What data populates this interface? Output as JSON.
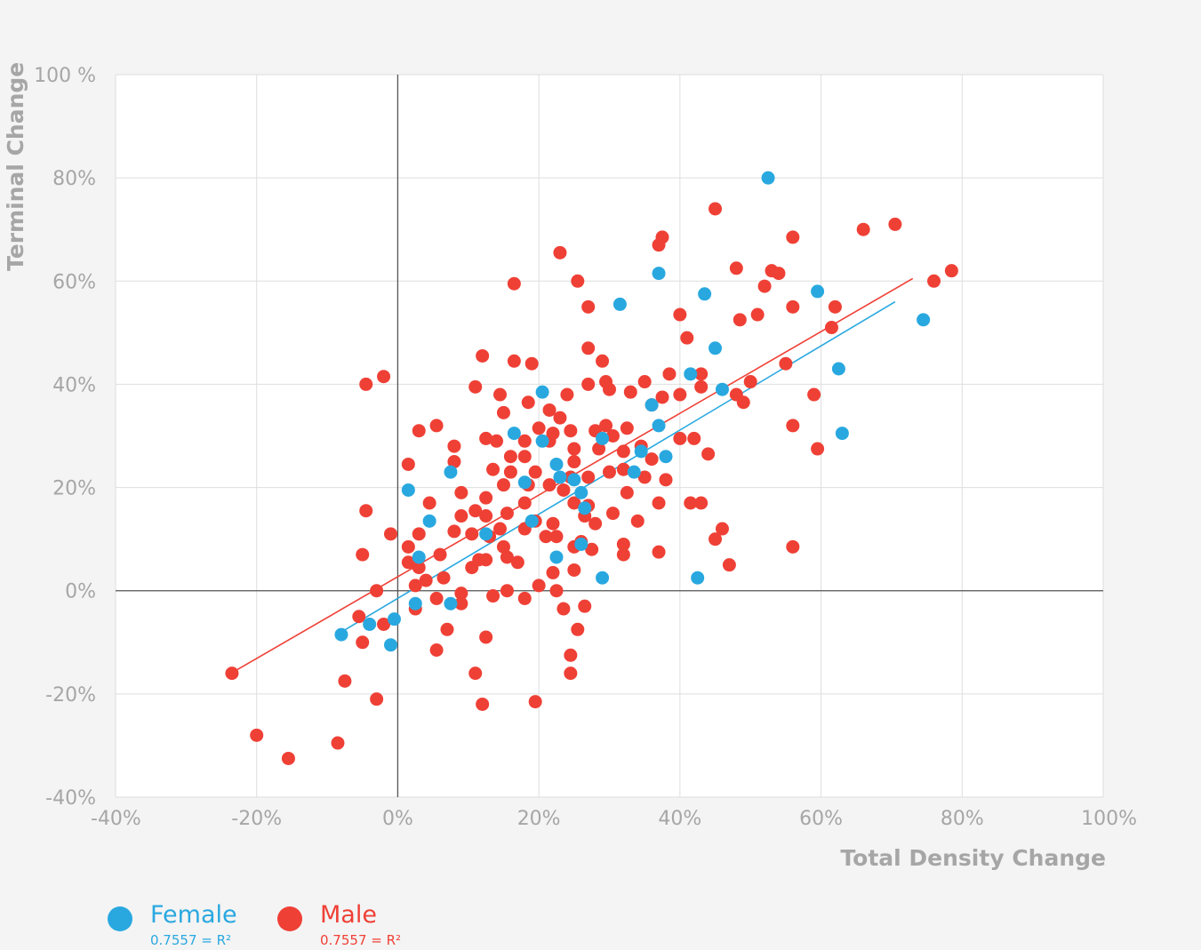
{
  "chart_data": {
    "type": "scatter",
    "title": "",
    "xlabel": "Total Density Change",
    "ylabel": "Terminal Change",
    "xlim": [
      -40,
      100
    ],
    "ylim": [
      -40,
      100
    ],
    "x_ticks": [
      {
        "value": -40,
        "label": "-40%"
      },
      {
        "value": -20,
        "label": "-20%"
      },
      {
        "value": 0,
        "label": "0%"
      },
      {
        "value": 20,
        "label": "20%"
      },
      {
        "value": 40,
        "label": "40%"
      },
      {
        "value": 60,
        "label": "60%"
      },
      {
        "value": 80,
        "label": "80%"
      },
      {
        "value": 100,
        "label": "100%"
      }
    ],
    "y_ticks": [
      {
        "value": 100,
        "label": "100 %"
      },
      {
        "value": 80,
        "label": "80%"
      },
      {
        "value": 60,
        "label": "60%"
      },
      {
        "value": 40,
        "label": "40%"
      },
      {
        "value": 20,
        "label": "20%"
      },
      {
        "value": 0,
        "label": "0%"
      },
      {
        "value": -20,
        "label": "-20%"
      },
      {
        "value": -40,
        "label": "-40%"
      }
    ],
    "grid": true,
    "legend_position": "bottom-left",
    "series": [
      {
        "name": "Female",
        "color": "#29a8e0",
        "r2_label": "0.7557 = R²",
        "trendline": {
          "x": [
            -8,
            70.5
          ],
          "y": [
            -8,
            56
          ]
        },
        "points": [
          [
            52.5,
            80
          ],
          [
            59.5,
            58
          ],
          [
            74.5,
            52.5
          ],
          [
            37,
            61.5
          ],
          [
            43.5,
            57.5
          ],
          [
            31.5,
            55.5
          ],
          [
            45,
            47
          ],
          [
            62.5,
            43
          ],
          [
            41.5,
            42
          ],
          [
            46,
            39
          ],
          [
            20.5,
            38.5
          ],
          [
            37,
            32
          ],
          [
            63,
            30.5
          ],
          [
            16.5,
            30.5
          ],
          [
            36,
            36
          ],
          [
            29,
            29.5
          ],
          [
            20.5,
            29
          ],
          [
            34.5,
            27
          ],
          [
            38,
            26
          ],
          [
            33.5,
            23
          ],
          [
            22.5,
            24.5
          ],
          [
            7.5,
            23
          ],
          [
            1.5,
            19.5
          ],
          [
            23,
            22
          ],
          [
            18,
            21
          ],
          [
            25,
            21.5
          ],
          [
            26,
            19
          ],
          [
            26.5,
            16
          ],
          [
            4.5,
            13.5
          ],
          [
            19,
            13.5
          ],
          [
            12.5,
            11
          ],
          [
            26,
            9
          ],
          [
            3,
            6.5
          ],
          [
            22.5,
            6.5
          ],
          [
            29,
            2.5
          ],
          [
            42.5,
            2.5
          ],
          [
            2.5,
            -2.5
          ],
          [
            7.5,
            -2.5
          ],
          [
            -4,
            -6.5
          ],
          [
            -0.5,
            -5.5
          ],
          [
            -8,
            -8.5
          ],
          [
            -1,
            -10.5
          ]
        ]
      },
      {
        "name": "Male",
        "color": "#ef4036",
        "r2_label": "0.7557 = R²",
        "trendline": {
          "x": [
            -23,
            73
          ],
          "y": [
            -15.5,
            60.5
          ]
        },
        "points": [
          [
            45,
            74
          ],
          [
            70.5,
            71
          ],
          [
            66,
            70
          ],
          [
            56,
            68.5
          ],
          [
            37.5,
            68.5
          ],
          [
            37,
            67
          ],
          [
            23,
            65.5
          ],
          [
            48,
            62.5
          ],
          [
            53,
            62
          ],
          [
            54,
            61.5
          ],
          [
            78.5,
            62
          ],
          [
            76,
            60
          ],
          [
            16.5,
            59.5
          ],
          [
            25.5,
            60
          ],
          [
            52,
            59
          ],
          [
            27,
            55
          ],
          [
            62,
            55
          ],
          [
            56,
            55
          ],
          [
            40,
            53.5
          ],
          [
            51,
            53.5
          ],
          [
            48.5,
            52.5
          ],
          [
            61.5,
            51
          ],
          [
            41,
            49
          ],
          [
            27,
            47
          ],
          [
            12,
            45.5
          ],
          [
            16.5,
            44.5
          ],
          [
            29,
            44.5
          ],
          [
            19,
            44
          ],
          [
            55,
            44
          ],
          [
            -4.5,
            40
          ],
          [
            -2,
            41.5
          ],
          [
            38.5,
            42
          ],
          [
            43,
            42
          ],
          [
            29.5,
            40.5
          ],
          [
            27,
            40
          ],
          [
            35,
            40.5
          ],
          [
            50,
            40.5
          ],
          [
            11,
            39.5
          ],
          [
            30,
            39
          ],
          [
            33,
            38.5
          ],
          [
            43,
            39.5
          ],
          [
            48,
            38
          ],
          [
            14.5,
            38
          ],
          [
            24,
            38
          ],
          [
            37.5,
            37.5
          ],
          [
            40,
            38
          ],
          [
            59,
            38
          ],
          [
            49,
            36.5
          ],
          [
            18.5,
            36.5
          ],
          [
            36,
            36
          ],
          [
            21.5,
            35
          ],
          [
            15,
            34.5
          ],
          [
            23,
            33.5
          ],
          [
            5.5,
            32
          ],
          [
            29.5,
            32
          ],
          [
            32.5,
            31.5
          ],
          [
            3,
            31
          ],
          [
            20,
            31.5
          ],
          [
            24.5,
            31
          ],
          [
            28,
            31
          ],
          [
            22,
            30.5
          ],
          [
            30.5,
            30
          ],
          [
            12.5,
            29.5
          ],
          [
            14,
            29
          ],
          [
            18,
            29
          ],
          [
            21.5,
            29
          ],
          [
            40,
            29.5
          ],
          [
            42,
            29.5
          ],
          [
            56,
            32
          ],
          [
            59.5,
            27.5
          ],
          [
            8,
            28
          ],
          [
            34.5,
            28
          ],
          [
            25,
            27.5
          ],
          [
            28.5,
            27.5
          ],
          [
            32,
            27
          ],
          [
            16,
            26
          ],
          [
            18,
            26
          ],
          [
            36,
            25.5
          ],
          [
            44,
            26.5
          ],
          [
            8,
            25
          ],
          [
            25,
            25
          ],
          [
            1.5,
            24.5
          ],
          [
            13.5,
            23.5
          ],
          [
            16,
            23
          ],
          [
            19.5,
            23
          ],
          [
            30,
            23
          ],
          [
            32,
            23.5
          ],
          [
            24.5,
            22
          ],
          [
            27,
            22
          ],
          [
            35,
            22
          ],
          [
            38,
            21.5
          ],
          [
            15,
            20.5
          ],
          [
            18.5,
            20.5
          ],
          [
            21.5,
            20.5
          ],
          [
            9,
            19
          ],
          [
            23.5,
            19.5
          ],
          [
            32.5,
            19
          ],
          [
            12.5,
            18
          ],
          [
            4.5,
            17
          ],
          [
            18,
            17
          ],
          [
            25,
            17
          ],
          [
            27,
            16.5
          ],
          [
            37,
            17
          ],
          [
            41.5,
            17
          ],
          [
            43,
            17
          ],
          [
            -4.5,
            15.5
          ],
          [
            11,
            15.5
          ],
          [
            15.5,
            15
          ],
          [
            30.5,
            15
          ],
          [
            9,
            14.5
          ],
          [
            12.5,
            14.5
          ],
          [
            26.5,
            14.5
          ],
          [
            19.5,
            13.5
          ],
          [
            22,
            13
          ],
          [
            28,
            13
          ],
          [
            34,
            13.5
          ],
          [
            14.5,
            12
          ],
          [
            18,
            12
          ],
          [
            46,
            12
          ],
          [
            -1,
            11
          ],
          [
            3,
            11
          ],
          [
            8,
            11.5
          ],
          [
            10.5,
            11
          ],
          [
            13,
            10.5
          ],
          [
            21,
            10.5
          ],
          [
            22.5,
            10.5
          ],
          [
            45,
            10
          ],
          [
            1.5,
            8.5
          ],
          [
            15,
            8.5
          ],
          [
            25,
            8.5
          ],
          [
            26,
            9.5
          ],
          [
            27.5,
            8
          ],
          [
            32,
            9
          ],
          [
            56,
            8.5
          ],
          [
            -5,
            7
          ],
          [
            6,
            7
          ],
          [
            11.5,
            6
          ],
          [
            12.5,
            6
          ],
          [
            15.5,
            6.5
          ],
          [
            17,
            5.5
          ],
          [
            32,
            7
          ],
          [
            37,
            7.5
          ],
          [
            1.5,
            5.5
          ],
          [
            3,
            4.5
          ],
          [
            10.5,
            4.5
          ],
          [
            22,
            3.5
          ],
          [
            25,
            4
          ],
          [
            47,
            5
          ],
          [
            4,
            2
          ],
          [
            6.5,
            2.5
          ],
          [
            2.5,
            1
          ],
          [
            20,
            1
          ],
          [
            -3,
            0
          ],
          [
            9,
            -0.5
          ],
          [
            15.5,
            0
          ],
          [
            22.5,
            0
          ],
          [
            13.5,
            -1
          ],
          [
            5.5,
            -1.5
          ],
          [
            18,
            -1.5
          ],
          [
            9,
            -2.5
          ],
          [
            26.5,
            -3
          ],
          [
            2.5,
            -3.5
          ],
          [
            23.5,
            -3.5
          ],
          [
            -5.5,
            -5
          ],
          [
            -2,
            -6.5
          ],
          [
            7,
            -7.5
          ],
          [
            25.5,
            -7.5
          ],
          [
            -5,
            -10
          ],
          [
            12.5,
            -9
          ],
          [
            5.5,
            -11.5
          ],
          [
            24.5,
            -12.5
          ],
          [
            -23.5,
            -16
          ],
          [
            11,
            -16
          ],
          [
            24.5,
            -16
          ],
          [
            -7.5,
            -17.5
          ],
          [
            -3,
            -21
          ],
          [
            12,
            -22
          ],
          [
            19.5,
            -21.5
          ],
          [
            -20,
            -28
          ],
          [
            -8.5,
            -29.5
          ],
          [
            -15.5,
            -32.5
          ]
        ]
      }
    ]
  }
}
